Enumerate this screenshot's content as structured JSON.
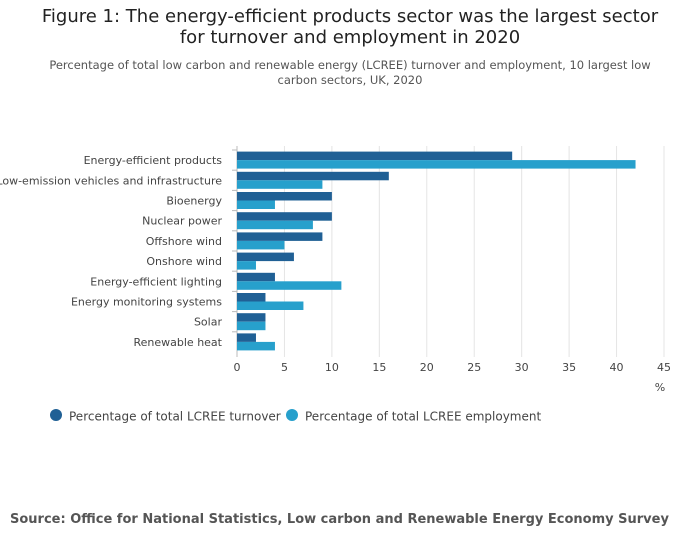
{
  "chart_data": {
    "type": "bar",
    "orientation": "horizontal",
    "title": "Figure 1: The energy-efficient products sector was the largest sector for turnover and employment in 2020",
    "subtitle": "Percentage of total low carbon and renewable energy (LCREE) turnover and employment, 10 largest low carbon sectors, UK, 2020",
    "x_label": "%",
    "categories": [
      "Energy-efficient products",
      "Low-emission vehicles and infrastructure",
      "Bioenergy",
      "Nuclear power",
      "Offshore wind",
      "Onshore wind",
      "Energy-efficient lighting",
      "Energy monitoring systems",
      "Solar",
      "Renewable heat"
    ],
    "series": [
      {
        "name": "Percentage of total LCREE turnover",
        "color": "#206095",
        "values": [
          29,
          16,
          10,
          10,
          9,
          6,
          4,
          3,
          3,
          2
        ]
      },
      {
        "name": "Percentage of total LCREE employment",
        "color": "#27a0cc",
        "values": [
          42,
          9,
          4,
          8,
          5,
          2,
          11,
          7,
          3,
          4
        ]
      }
    ],
    "xlim": [
      0,
      45
    ],
    "xticks": [
      0,
      5,
      10,
      15,
      20,
      25,
      30,
      35,
      40,
      45
    ],
    "grid": true,
    "source": "Source: Office for National Statistics, Low carbon and Renewable Energy Economy Survey"
  }
}
